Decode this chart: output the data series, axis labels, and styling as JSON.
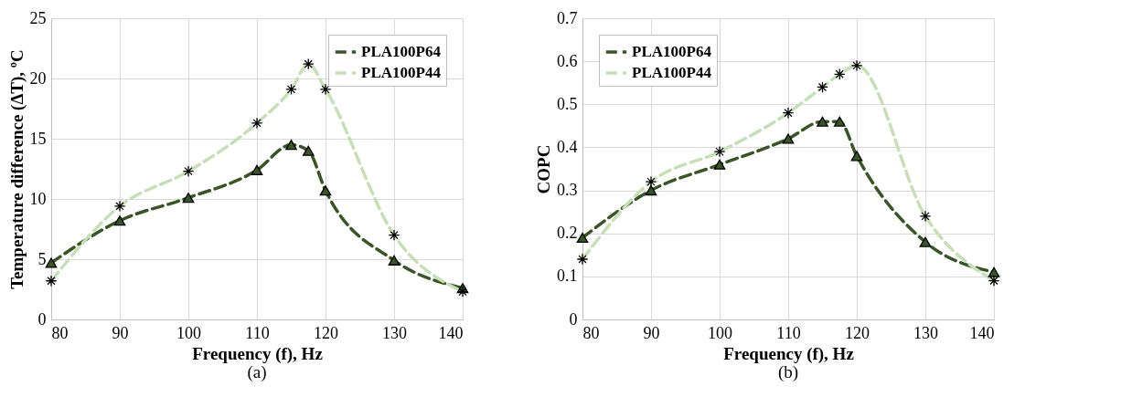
{
  "chart_data": [
    {
      "type": "line",
      "title": "(a)",
      "xlabel": "Frequency (f), Hz",
      "ylabel": "Temperature difference (ΔT), ºC",
      "x": [
        80,
        90,
        100,
        110,
        115,
        117.5,
        120,
        130,
        140
      ],
      "xlim": [
        80,
        140
      ],
      "xticks": [
        80,
        90,
        100,
        110,
        120,
        130,
        140
      ],
      "ylim": [
        0,
        25
      ],
      "yticks": [
        0,
        5,
        10,
        15,
        20,
        25
      ],
      "grid": true,
      "legend": "top right",
      "series": [
        {
          "name": "PLA100P64",
          "color": "#375623",
          "marker": "triangle",
          "line_style": "dashed",
          "values": [
            4.7,
            8.2,
            10.1,
            12.4,
            14.5,
            14.0,
            10.7,
            4.9,
            2.6
          ]
        },
        {
          "name": "PLA100P44",
          "color": "#c5e0b4",
          "marker": "cross",
          "line_style": "dashed",
          "values": [
            3.2,
            9.4,
            12.3,
            16.3,
            19.1,
            21.2,
            19.1,
            7.0,
            2.3
          ]
        }
      ]
    },
    {
      "type": "line",
      "title": "(b)",
      "xlabel": "Frequency (f), Hz",
      "ylabel": "COPC",
      "x": [
        80,
        90,
        100,
        110,
        115,
        117.5,
        120,
        130,
        140
      ],
      "xlim": [
        80,
        140
      ],
      "xticks": [
        80,
        90,
        100,
        110,
        120,
        130,
        140
      ],
      "ylim": [
        0,
        0.7
      ],
      "yticks": [
        0,
        0.1,
        0.2,
        0.3,
        0.4,
        0.5,
        0.6,
        0.7
      ],
      "grid": true,
      "legend": "top left",
      "series": [
        {
          "name": "PLA100P64",
          "color": "#375623",
          "marker": "triangle",
          "line_style": "dashed",
          "values": [
            0.19,
            0.3,
            0.36,
            0.42,
            0.46,
            0.46,
            0.38,
            0.18,
            0.11
          ]
        },
        {
          "name": "PLA100P44",
          "color": "#c5e0b4",
          "marker": "cross",
          "line_style": "dashed",
          "values": [
            0.14,
            0.32,
            0.39,
            0.48,
            0.54,
            0.57,
            0.59,
            0.24,
            0.09
          ]
        }
      ]
    }
  ]
}
